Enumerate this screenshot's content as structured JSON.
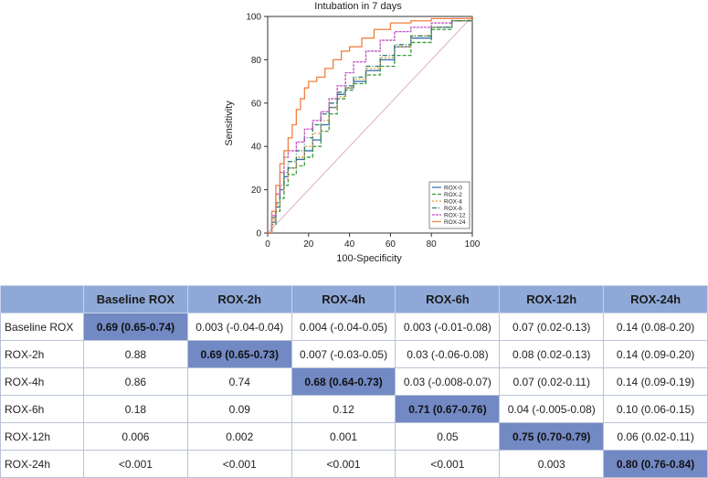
{
  "chart_data": {
    "type": "line",
    "title": "Intubation in 7 days",
    "xlabel": "100-Specificity",
    "ylabel": "Sensitivity",
    "xlim": [
      0,
      100
    ],
    "ylim": [
      0,
      100
    ],
    "xticks": [
      "0",
      "20",
      "40",
      "60",
      "80",
      "100"
    ],
    "yticks": [
      "0",
      "20",
      "40",
      "60",
      "80",
      "100"
    ],
    "legend_position": "bottom-right",
    "reference_line": {
      "x": [
        0,
        100
      ],
      "y": [
        0,
        100
      ],
      "color": "#e0b0c0"
    },
    "series": [
      {
        "name": "ROX-0",
        "color": "#2f6db0",
        "dash": "",
        "x": [
          0,
          2,
          4,
          6,
          8,
          10,
          14,
          18,
          22,
          26,
          30,
          34,
          38,
          42,
          48,
          55,
          62,
          70,
          80,
          90,
          100
        ],
        "y": [
          0,
          5,
          12,
          20,
          26,
          30,
          34,
          38,
          43,
          50,
          58,
          64,
          67,
          70,
          75,
          80,
          86,
          90,
          95,
          98,
          100
        ]
      },
      {
        "name": "ROX-2",
        "color": "#3a9a3a",
        "dash": "4,2",
        "x": [
          0,
          2,
          4,
          6,
          8,
          10,
          14,
          18,
          22,
          26,
          30,
          34,
          38,
          42,
          48,
          55,
          62,
          70,
          80,
          90,
          100
        ],
        "y": [
          0,
          4,
          10,
          16,
          22,
          27,
          31,
          35,
          40,
          47,
          55,
          62,
          66,
          69,
          73,
          77,
          82,
          88,
          94,
          98,
          100
        ]
      },
      {
        "name": "ROX-4",
        "color": "#e0a030",
        "dash": "2,2",
        "x": [
          0,
          2,
          4,
          6,
          8,
          10,
          14,
          18,
          22,
          26,
          30,
          34,
          38,
          42,
          48,
          55,
          62,
          70,
          80,
          90,
          100
        ],
        "y": [
          0,
          6,
          13,
          20,
          25,
          30,
          35,
          40,
          46,
          52,
          58,
          63,
          67,
          71,
          76,
          81,
          86,
          91,
          95,
          98,
          100
        ]
      },
      {
        "name": "ROX-6",
        "color": "#2e7a6a",
        "dash": "5,2,1,2",
        "x": [
          0,
          2,
          4,
          6,
          8,
          10,
          14,
          18,
          22,
          26,
          30,
          34,
          38,
          42,
          48,
          55,
          62,
          70,
          80,
          90,
          100
        ],
        "y": [
          0,
          7,
          14,
          22,
          28,
          33,
          38,
          44,
          50,
          55,
          60,
          65,
          68,
          72,
          77,
          82,
          87,
          91,
          95,
          98,
          100
        ]
      },
      {
        "name": "ROX-12",
        "color": "#c050c0",
        "dash": "3,1",
        "x": [
          0,
          2,
          4,
          6,
          8,
          10,
          14,
          18,
          22,
          26,
          30,
          34,
          38,
          42,
          48,
          55,
          62,
          70,
          80,
          90,
          100
        ],
        "y": [
          0,
          8,
          18,
          28,
          35,
          38,
          42,
          48,
          52,
          56,
          62,
          68,
          74,
          79,
          84,
          89,
          93,
          95,
          97,
          99,
          100
        ]
      },
      {
        "name": "ROX-24",
        "color": "#f08040",
        "dash": "",
        "x": [
          0,
          2,
          4,
          6,
          8,
          10,
          12,
          14,
          16,
          18,
          20,
          24,
          28,
          32,
          36,
          40,
          46,
          52,
          60,
          70,
          80,
          90,
          100
        ],
        "y": [
          0,
          10,
          22,
          32,
          38,
          44,
          50,
          57,
          62,
          67,
          70,
          72,
          76,
          80,
          84,
          86,
          90,
          94,
          97,
          98,
          99,
          99,
          100
        ]
      }
    ]
  },
  "table": {
    "corner": "",
    "headers": [
      "Baseline ROX",
      "ROX-2h",
      "ROX-4h",
      "ROX-6h",
      "ROX-12h",
      "ROX-24h"
    ],
    "rows": [
      {
        "label": "Baseline ROX",
        "cells": [
          "0.69 (0.65-0.74)",
          "0.003 (-0.04-0.04)",
          "0.004 (-0.04-0.05)",
          "0.003 (-0.01-0.08)",
          "0.07 (0.02-0.13)",
          "0.14 (0.08-0.20)"
        ]
      },
      {
        "label": "ROX-2h",
        "cells": [
          "0.88",
          "0.69 (0.65-0.73)",
          "0.007 (-0.03-0.05)",
          "0.03 (-0.06-0.08)",
          "0.08 (0.02-0.13)",
          "0.14 (0.09-0.20)"
        ]
      },
      {
        "label": "ROX-4h",
        "cells": [
          "0.86",
          "0.74",
          "0.68 (0.64-0.73)",
          "0.03 (-0.008-0.07)",
          "0.07 (0.02-0.11)",
          "0.14 (0.09-0.19)"
        ]
      },
      {
        "label": "ROX-6h",
        "cells": [
          "0.18",
          "0.09",
          "0.12",
          "0.71 (0.67-0.76)",
          "0.04 (-0.005-0.08)",
          "0.10 (0.06-0.15)"
        ]
      },
      {
        "label": "ROX-12h",
        "cells": [
          "0.006",
          "0.002",
          "0.001",
          "0.05",
          "0.75 (0.70-0.79)",
          "0.06 (0.02-0.11)"
        ]
      },
      {
        "label": "ROX-24h",
        "cells": [
          "<0.001",
          "<0.001",
          "<0.001",
          "<0.001",
          "0.003",
          "0.80 (0.76-0.84)"
        ]
      }
    ]
  }
}
